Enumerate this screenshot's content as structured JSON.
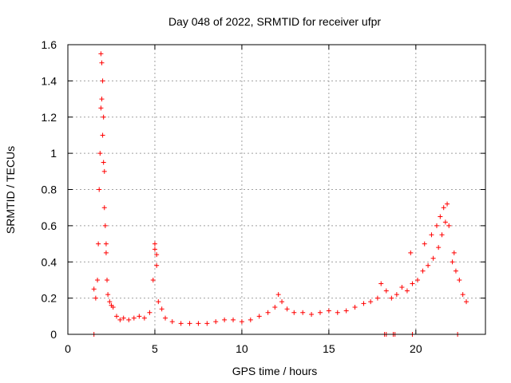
{
  "chart_data": {
    "type": "scatter",
    "title": "Day 048 of 2022, SRMTID for receiver ufpr",
    "xlabel": "GPS time / hours",
    "ylabel": "SRMTID / TECUs",
    "xlim": [
      0,
      24
    ],
    "ylim": [
      0,
      1.6
    ],
    "xticks": [
      "0",
      "5",
      "10",
      "15",
      "20"
    ],
    "yticks": [
      "0",
      "0.2",
      "0.4",
      "0.6",
      "0.8",
      "1",
      "1.2",
      "1.4",
      "1.6"
    ],
    "grid": true,
    "marker": "plus",
    "colors": {
      "points": "#ff0000",
      "frame": "#000000",
      "grid": "#a0a0a0"
    },
    "series": [
      {
        "name": "SRMTID",
        "x": [
          1.5,
          1.6,
          1.7,
          1.75,
          1.8,
          1.85,
          1.9,
          1.95,
          2.0,
          2.05,
          2.1,
          2.15,
          2.2,
          2.25,
          2.3,
          2.4,
          2.5,
          2.6,
          2.8,
          3.0,
          3.2,
          3.5,
          3.8,
          4.1,
          4.4,
          4.7,
          4.9,
          5.0,
          5.1,
          5.2,
          5.4,
          5.6,
          6.0,
          6.5,
          7.0,
          7.5,
          8.0,
          8.5,
          9.0,
          9.5,
          10.0,
          10.5,
          11.0,
          11.5,
          11.9,
          12.1,
          12.3,
          12.6,
          13.0,
          13.5,
          14.0,
          14.5,
          15.0,
          15.5,
          16.0,
          16.5,
          17.0,
          17.4,
          17.8,
          18.0,
          18.3,
          18.6,
          18.9,
          19.2,
          19.5,
          19.8,
          20.1,
          20.4,
          20.7,
          21.0,
          21.3,
          21.5,
          21.7,
          21.9,
          22.1,
          22.3,
          22.5,
          22.7,
          22.9,
          1.9,
          1.95,
          2.0,
          2.05,
          2.1,
          2.2,
          5.0,
          5.1,
          19.7,
          20.5,
          20.9,
          21.2,
          21.4,
          21.6,
          21.8,
          22.2,
          1.5,
          18.2,
          18.3,
          18.7,
          18.8,
          19.8,
          22.4
        ],
        "y": [
          0.25,
          0.2,
          0.3,
          0.5,
          0.8,
          1.0,
          1.25,
          1.5,
          1.4,
          1.2,
          0.9,
          0.6,
          0.45,
          0.3,
          0.22,
          0.18,
          0.16,
          0.15,
          0.1,
          0.08,
          0.09,
          0.08,
          0.09,
          0.1,
          0.09,
          0.12,
          0.3,
          0.47,
          0.38,
          0.18,
          0.14,
          0.09,
          0.07,
          0.06,
          0.06,
          0.06,
          0.06,
          0.07,
          0.08,
          0.08,
          0.07,
          0.08,
          0.1,
          0.12,
          0.15,
          0.22,
          0.18,
          0.14,
          0.12,
          0.12,
          0.11,
          0.12,
          0.13,
          0.12,
          0.13,
          0.15,
          0.17,
          0.18,
          0.2,
          0.28,
          0.24,
          0.2,
          0.22,
          0.26,
          0.24,
          0.28,
          0.3,
          0.35,
          0.38,
          0.42,
          0.48,
          0.55,
          0.62,
          0.6,
          0.4,
          0.35,
          0.3,
          0.22,
          0.18,
          1.55,
          1.3,
          1.1,
          0.95,
          0.7,
          0.5,
          0.5,
          0.44,
          0.45,
          0.5,
          0.55,
          0.6,
          0.65,
          0.7,
          0.72,
          0.45,
          0.0,
          0.0,
          0.0,
          0.0,
          0.0,
          0.0,
          0.0
        ]
      }
    ]
  }
}
